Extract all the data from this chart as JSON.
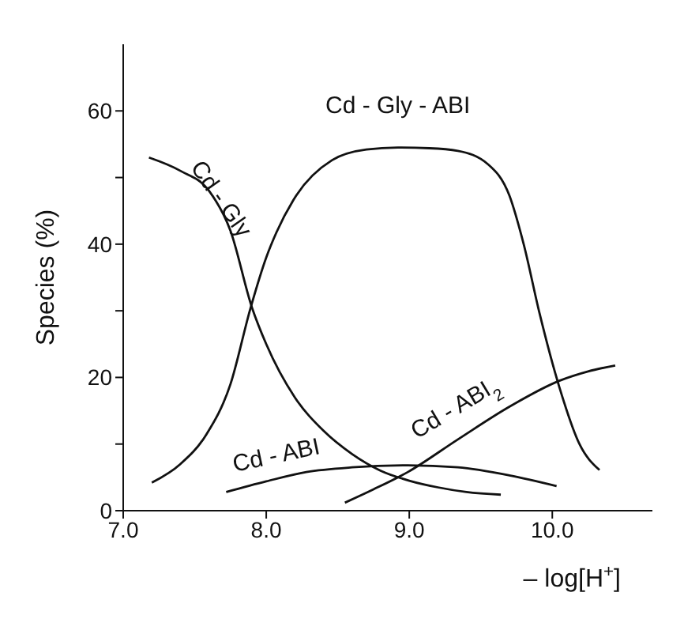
{
  "chart_data": {
    "type": "line",
    "xlabel": "– log[H$^{+}$]",
    "ylabel": "Species (%)",
    "xlim": [
      7.0,
      10.7
    ],
    "xticks": [
      {
        "value": 7,
        "label": "7.0"
      },
      {
        "value": 8,
        "label": "8.0"
      },
      {
        "value": 9,
        "label": "9.0"
      },
      {
        "value": 10,
        "label": "10.0"
      }
    ],
    "ylim": [
      0,
      70
    ],
    "yticks": [
      0,
      {
        "value": 10,
        "label": null
      },
      20,
      {
        "value": 30,
        "label": null
      },
      40,
      {
        "value": 50,
        "label": null
      },
      60
    ],
    "grid": false,
    "legend": false,
    "marker": "none",
    "line_style": "solid",
    "series": [
      {
        "name": "Cd - Gly",
        "color": "#111111",
        "x": [
          7.18,
          7.4,
          7.6,
          7.75,
          7.9,
          8.0,
          8.2,
          8.4,
          8.6,
          8.8,
          9.0,
          9.2,
          9.4,
          9.64
        ],
        "values": [
          53,
          51,
          48,
          42,
          30.5,
          25,
          17,
          12,
          8.5,
          6,
          4.5,
          3.5,
          2.8,
          2.4
        ]
      },
      {
        "name": "Cd - Gly - ABI",
        "color": "#111111",
        "x": [
          7.2,
          7.4,
          7.58,
          7.75,
          7.89,
          8.0,
          8.07,
          8.21,
          8.46,
          8.7,
          8.92,
          9.14,
          9.34,
          9.55,
          9.7,
          9.8,
          9.91,
          10.05,
          10.19,
          10.33
        ],
        "values": [
          4.2,
          7,
          11.4,
          19,
          30.4,
          38,
          41.7,
          47.3,
          52.6,
          54.2,
          54.5,
          54.4,
          54,
          52,
          47.3,
          40,
          29.7,
          18.5,
          10,
          6.1
        ]
      },
      {
        "name": "Cd - ABI",
        "color": "#111111",
        "x": [
          7.72,
          8.0,
          8.28,
          8.6,
          8.99,
          9.34,
          9.7,
          10.03
        ],
        "values": [
          2.8,
          4.4,
          5.8,
          6.5,
          6.8,
          6.5,
          5.3,
          3.7
        ]
      },
      {
        "name": "Cd - ABI$_{2}$",
        "color": "#111111",
        "x": [
          8.55,
          8.75,
          8.99,
          9.34,
          9.7,
          10.05,
          10.25,
          10.44
        ],
        "values": [
          1.2,
          3.2,
          5.8,
          10.7,
          15.6,
          19.5,
          20.9,
          21.8
        ]
      }
    ]
  }
}
